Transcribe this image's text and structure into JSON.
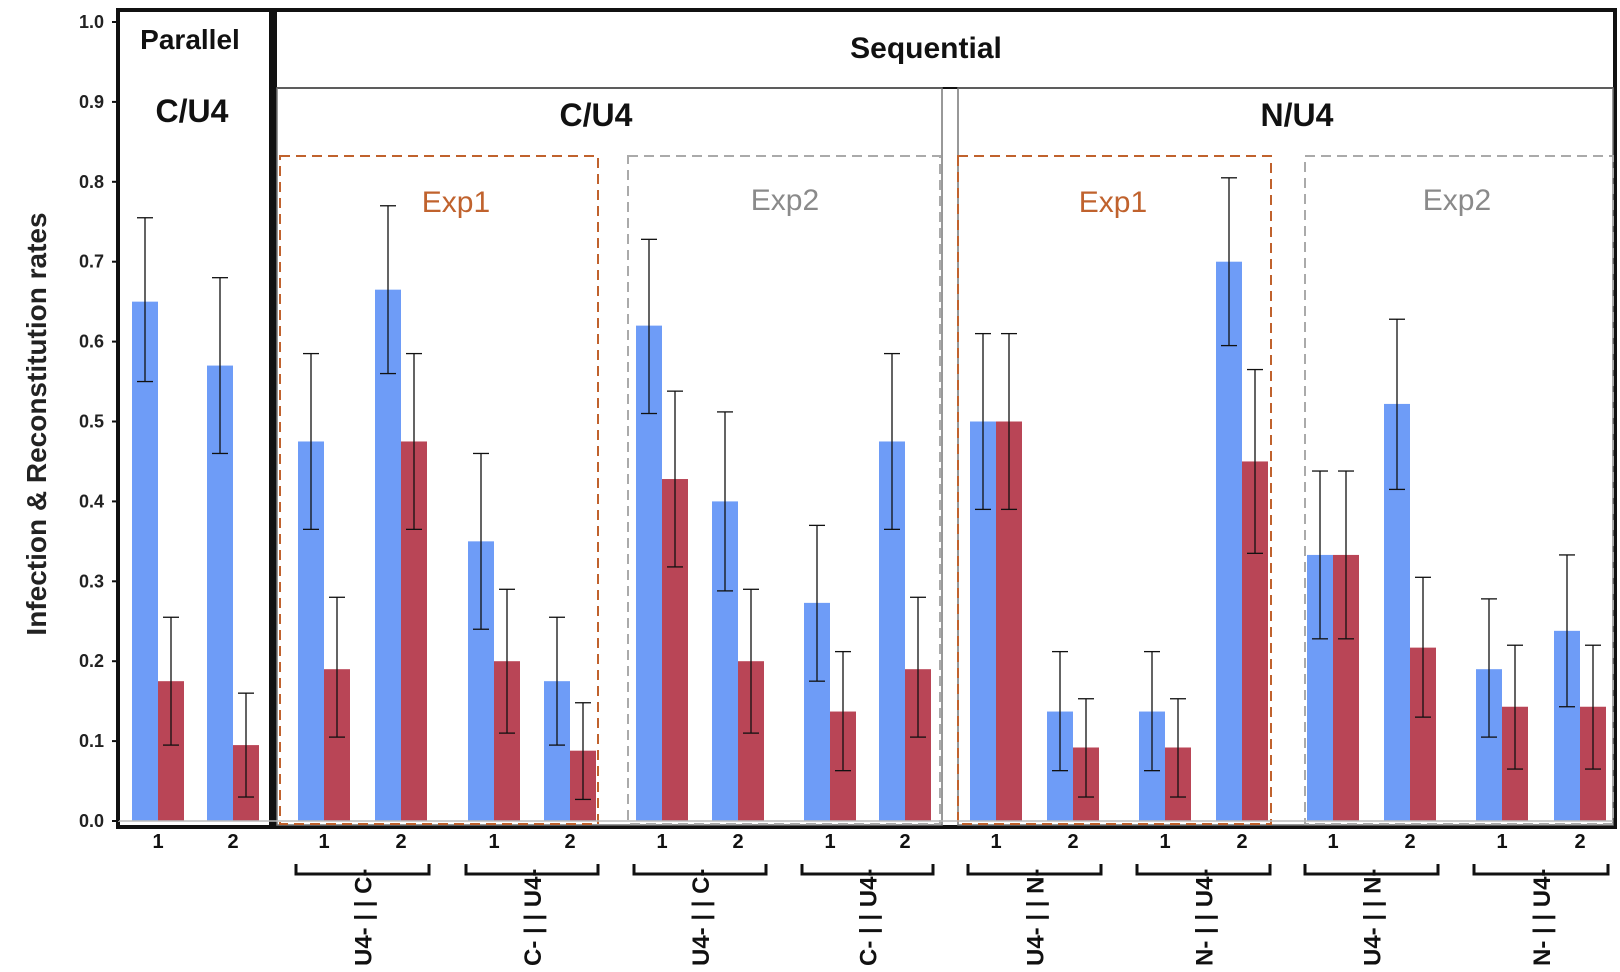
{
  "chart_data": {
    "type": "bar",
    "ylabel": "Infection & Reconstitution rates",
    "ylim": [
      0,
      1.0
    ],
    "yticks": [
      "0.0",
      "0.1",
      "0.2",
      "0.3",
      "0.4",
      "0.5",
      "0.6",
      "0.7",
      "0.8",
      "0.9",
      "1.0"
    ],
    "series_colors": [
      "#6e9cf7",
      "#b94556"
    ],
    "headers": {
      "parallel_title": "Parallel",
      "parallel_sub": "C/U4",
      "sequential_title": "Sequential",
      "cu4": "C/U4",
      "nu4": "N/U4",
      "exp1_cu4": "Exp1",
      "exp2_cu4": "Exp2",
      "exp1_nu4": "Exp1",
      "exp2_nu4": "Exp2"
    },
    "exp_colors": {
      "exp1": "#c0622d",
      "exp2": "#8a8a8a"
    },
    "parallel": {
      "groups": [
        {
          "tick": "1",
          "values": [
            0.65,
            0.175
          ],
          "errors": [
            [
              0.55,
              0.755
            ],
            [
              0.095,
              0.255
            ]
          ]
        },
        {
          "tick": "2",
          "values": [
            0.57,
            0.095
          ],
          "errors": [
            [
              0.46,
              0.68
            ],
            [
              0.03,
              0.16
            ]
          ]
        }
      ]
    },
    "conditions": [
      {
        "label": "U4- | | C-",
        "groups": [
          {
            "tick": "1",
            "values": [
              0.475,
              0.19
            ],
            "errors": [
              [
                0.365,
                0.585
              ],
              [
                0.105,
                0.28
              ]
            ]
          },
          {
            "tick": "2",
            "values": [
              0.665,
              0.475
            ],
            "errors": [
              [
                0.56,
                0.77
              ],
              [
                0.365,
                0.585
              ]
            ]
          }
        ]
      },
      {
        "label": "C- | | U4-",
        "groups": [
          {
            "tick": "1",
            "values": [
              0.35,
              0.2
            ],
            "errors": [
              [
                0.24,
                0.46
              ],
              [
                0.11,
                0.29
              ]
            ]
          },
          {
            "tick": "2",
            "values": [
              0.175,
              0.088
            ],
            "errors": [
              [
                0.095,
                0.255
              ],
              [
                0.027,
                0.148
              ]
            ]
          }
        ]
      },
      {
        "label": "U4- | | C-",
        "groups": [
          {
            "tick": "1",
            "values": [
              0.62,
              0.428
            ],
            "errors": [
              [
                0.51,
                0.728
              ],
              [
                0.318,
                0.538
              ]
            ]
          },
          {
            "tick": "2",
            "values": [
              0.4,
              0.2
            ],
            "errors": [
              [
                0.288,
                0.512
              ],
              [
                0.11,
                0.29
              ]
            ]
          }
        ]
      },
      {
        "label": "C- | | U4-",
        "groups": [
          {
            "tick": "1",
            "values": [
              0.273,
              0.137
            ],
            "errors": [
              [
                0.175,
                0.37
              ],
              [
                0.063,
                0.212
              ]
            ]
          },
          {
            "tick": "2",
            "values": [
              0.475,
              0.19
            ],
            "errors": [
              [
                0.365,
                0.585
              ],
              [
                0.105,
                0.28
              ]
            ]
          }
        ]
      },
      {
        "label": "U4- | | N-",
        "groups": [
          {
            "tick": "1",
            "values": [
              0.5,
              0.5
            ],
            "errors": [
              [
                0.39,
                0.61
              ],
              [
                0.39,
                0.61
              ]
            ]
          },
          {
            "tick": "2",
            "values": [
              0.137,
              0.092
            ],
            "errors": [
              [
                0.063,
                0.212
              ],
              [
                0.03,
                0.153
              ]
            ]
          }
        ]
      },
      {
        "label": "N- | | U4-",
        "groups": [
          {
            "tick": "1",
            "values": [
              0.137,
              0.092
            ],
            "errors": [
              [
                0.063,
                0.212
              ],
              [
                0.03,
                0.153
              ]
            ]
          },
          {
            "tick": "2",
            "values": [
              0.7,
              0.45
            ],
            "errors": [
              [
                0.595,
                0.805
              ],
              [
                0.335,
                0.565
              ]
            ]
          }
        ]
      },
      {
        "label": "U4- | | N-",
        "groups": [
          {
            "tick": "1",
            "values": [
              0.333,
              0.333
            ],
            "errors": [
              [
                0.228,
                0.438
              ],
              [
                0.228,
                0.438
              ]
            ]
          },
          {
            "tick": "2",
            "values": [
              0.522,
              0.217
            ],
            "errors": [
              [
                0.415,
                0.628
              ],
              [
                0.13,
                0.305
              ]
            ]
          }
        ]
      },
      {
        "label": "N- | | U4-",
        "groups": [
          {
            "tick": "1",
            "values": [
              0.19,
              0.143
            ],
            "errors": [
              [
                0.105,
                0.278
              ],
              [
                0.065,
                0.22
              ]
            ]
          },
          {
            "tick": "2",
            "values": [
              0.238,
              0.143
            ],
            "errors": [
              [
                0.143,
                0.333
              ],
              [
                0.065,
                0.22
              ]
            ]
          }
        ]
      }
    ]
  }
}
